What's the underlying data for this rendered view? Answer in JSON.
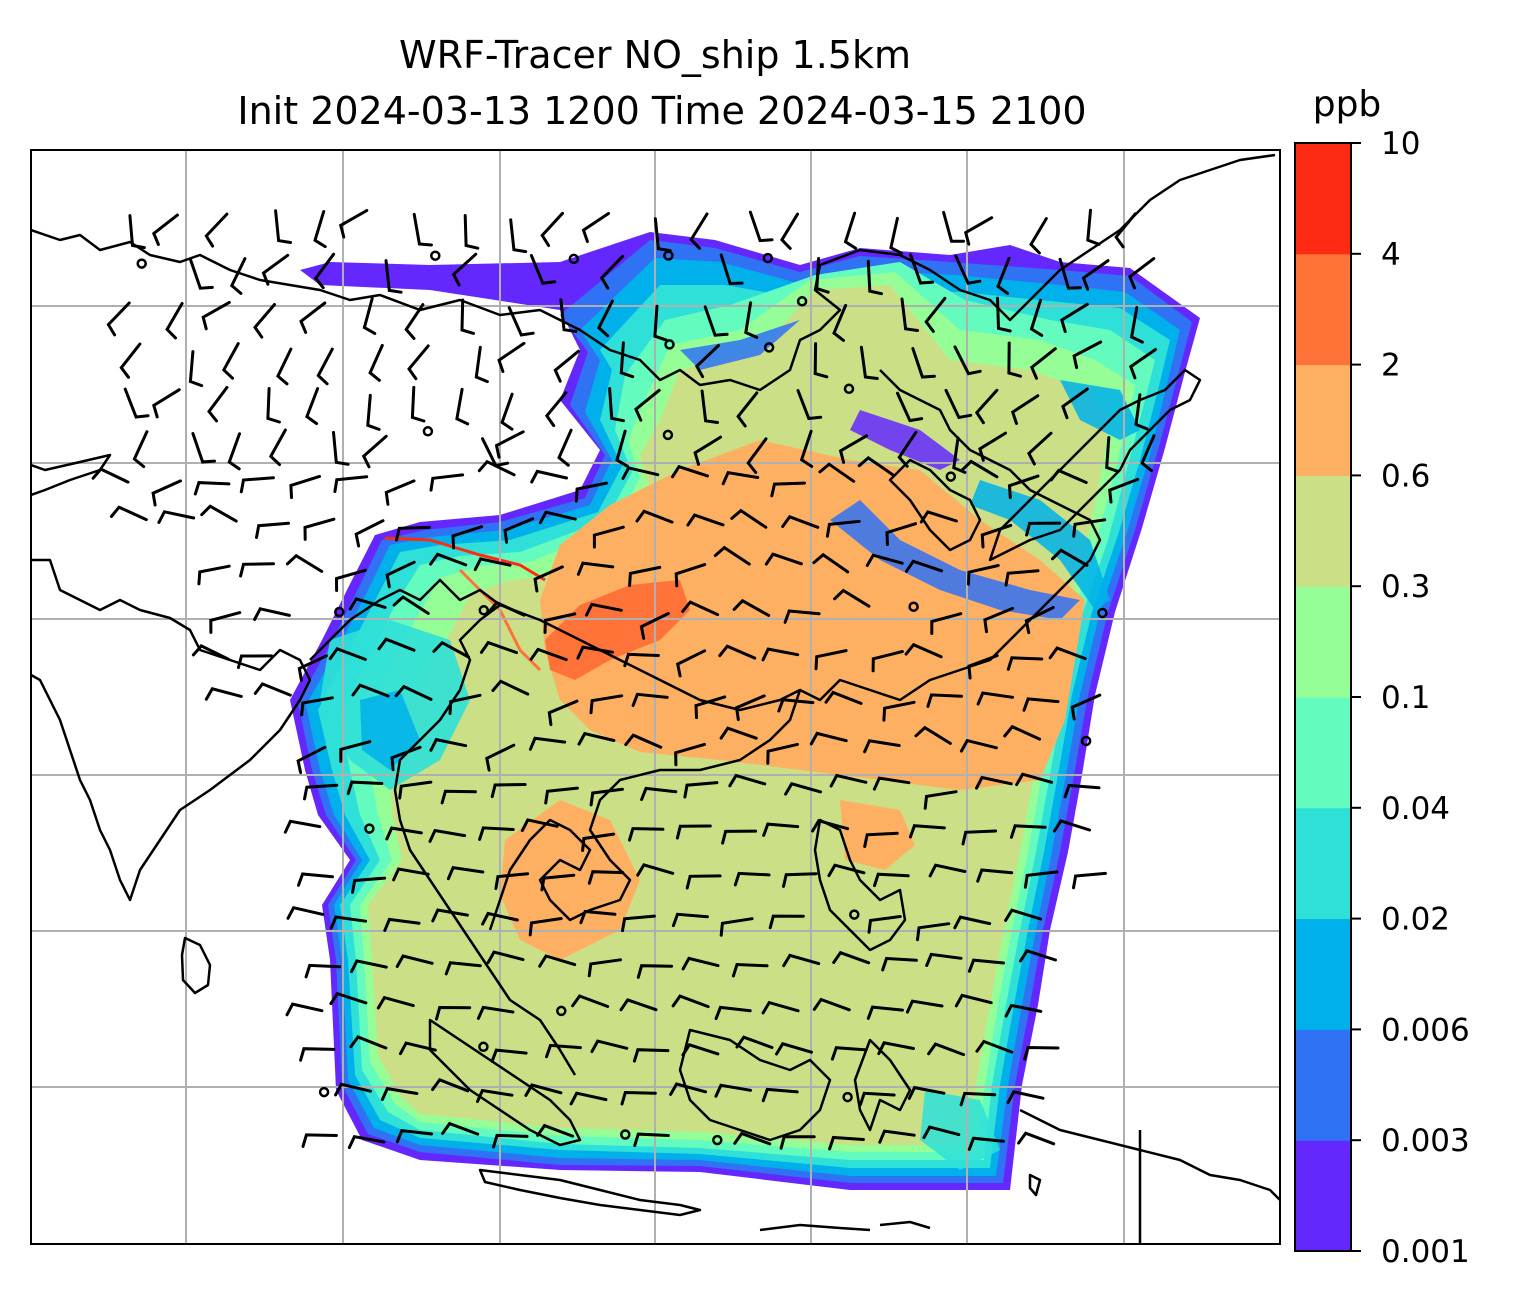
{
  "title": {
    "line1": "WRF-Tracer NO_ship 1.5km",
    "line2": "Init 2024-03-13 1200 Time 2024-03-15 2100"
  },
  "colorbar": {
    "unit": "ppb",
    "levels": [
      "0.001",
      "0.003",
      "0.006",
      "0.02",
      "0.04",
      "0.1",
      "0.3",
      "0.6",
      "2",
      "4",
      "10"
    ],
    "colors": [
      "#6428ff",
      "#3072f4",
      "#00b0ea",
      "#2fe0d8",
      "#64fbbe",
      "#96fe96",
      "#cbe086",
      "#feb062",
      "#ff7238",
      "#ff2a14"
    ]
  },
  "map": {
    "field": "NO_ship tracer concentration",
    "unit": "ppb",
    "overlay": "wind barbs",
    "gridlines": true,
    "coastlines": true
  }
}
